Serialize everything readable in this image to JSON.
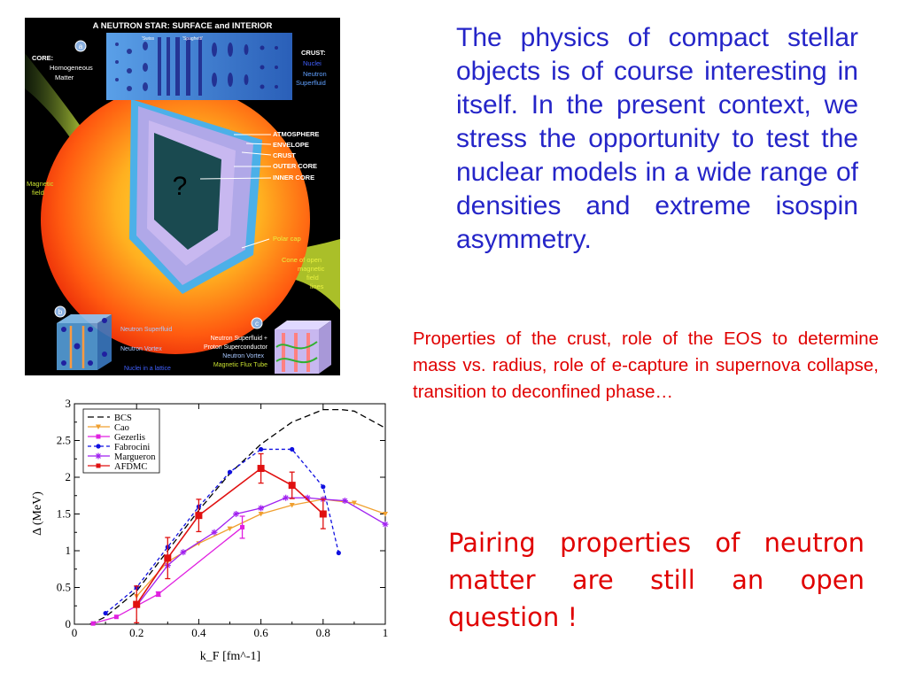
{
  "figure": {
    "title": "A NEUTRON STAR:  SURFACE and INTERIOR",
    "badges": [
      "a",
      "b",
      "c"
    ],
    "core_label": [
      "CORE:",
      "Homogeneous",
      "Matter"
    ],
    "crust_label": [
      "CRUST:",
      "Nuclei",
      "Neutron",
      "Superfluid"
    ],
    "pasta_labels": [
      "'Swiss",
      "'Spaghetti'"
    ],
    "layers": [
      "ATMOSPHERE",
      "ENVELOPE",
      "CRUST",
      "OUTER CORE",
      "INNER CORE"
    ],
    "question_mark": "?",
    "magnetic_field": [
      "Magnetic",
      "field"
    ],
    "polar_cap": "Polar cap",
    "cone": [
      "Cone of open",
      "magnetic",
      "field",
      "lines"
    ],
    "inset_b": [
      "Neutron Superfluid",
      "Neutron Vortex",
      "Nuclei in a lattice"
    ],
    "inset_c": [
      "Neutron Superfluid +",
      "Proton Superconductor",
      "Neutron Vortex",
      "Magnetic Flux Tube"
    ]
  },
  "intro": "The physics of compact stellar objects is of course interesting in itself. In the present context, we stress the opportunity to test the nuclear models in a wide range of densities and extreme isospin asymmetry.",
  "crust_note": "Properties of the crust, role of the EOS to determine mass vs. radius, role of e-capture in supernova collapse, transition to deconfined phase…",
  "pairing_note": "Pairing properties of neutron matter are still an open question !",
  "chart_data": {
    "type": "line",
    "xlabel": "k_F [fm^-1]",
    "ylabel": "Δ (MeV)",
    "xlim": [
      0,
      1
    ],
    "ylim": [
      0,
      3
    ],
    "x_ticks": [
      "0",
      "0.2",
      "0.4",
      "0.6",
      "0.8",
      "1"
    ],
    "y_ticks": [
      "0",
      "0.5",
      "1",
      "1.5",
      "2",
      "2.5",
      "3"
    ],
    "legend_position": "top-left",
    "series": [
      {
        "name": "BCS",
        "color": "#000000",
        "dash": "7,4",
        "marker": "none",
        "x": [
          0.05,
          0.1,
          0.2,
          0.3,
          0.4,
          0.5,
          0.6,
          0.7,
          0.8,
          0.86,
          0.9,
          1.0
        ],
        "y": [
          0.0,
          0.1,
          0.45,
          1.0,
          1.55,
          2.05,
          2.45,
          2.75,
          2.92,
          2.92,
          2.9,
          2.67
        ]
      },
      {
        "name": "Cao",
        "color": "#f0a030",
        "dash": "",
        "marker": "triangle",
        "x": [
          0.2,
          0.3,
          0.4,
          0.5,
          0.6,
          0.7,
          0.8,
          0.9,
          1.0
        ],
        "y": [
          0.38,
          0.85,
          1.1,
          1.3,
          1.5,
          1.62,
          1.7,
          1.65,
          1.5
        ]
      },
      {
        "name": "Gezerlis",
        "color": "#e020e0",
        "dash": "",
        "marker": "square",
        "x": [
          0.06,
          0.135,
          0.27,
          0.54
        ],
        "y": [
          0.01,
          0.1,
          0.41,
          1.32
        ],
        "err": [
          0,
          0,
          0.03,
          0.15
        ]
      },
      {
        "name": "Fabrocini",
        "color": "#1010e0",
        "dash": "4,3",
        "marker": "circle",
        "x": [
          0.1,
          0.2,
          0.3,
          0.4,
          0.5,
          0.6,
          0.7,
          0.8,
          0.85
        ],
        "y": [
          0.15,
          0.5,
          1.05,
          1.6,
          2.07,
          2.38,
          2.38,
          1.87,
          0.97
        ]
      },
      {
        "name": "Margueron",
        "color": "#a020f0",
        "dash": "",
        "marker": "star",
        "x": [
          0.2,
          0.3,
          0.35,
          0.45,
          0.52,
          0.6,
          0.68,
          0.75,
          0.8,
          0.87,
          1.0
        ],
        "y": [
          0.25,
          0.8,
          0.98,
          1.25,
          1.5,
          1.58,
          1.72,
          1.72,
          1.7,
          1.68,
          1.36
        ]
      },
      {
        "name": "AFDMC",
        "color": "#e01010",
        "dash": "",
        "marker": "bigsquare",
        "x": [
          0.2,
          0.3,
          0.4,
          0.6,
          0.7,
          0.8
        ],
        "y": [
          0.27,
          0.9,
          1.48,
          2.12,
          1.89,
          1.5
        ],
        "err": [
          0.25,
          0.28,
          0.22,
          0.2,
          0.18,
          0.2
        ]
      }
    ]
  }
}
